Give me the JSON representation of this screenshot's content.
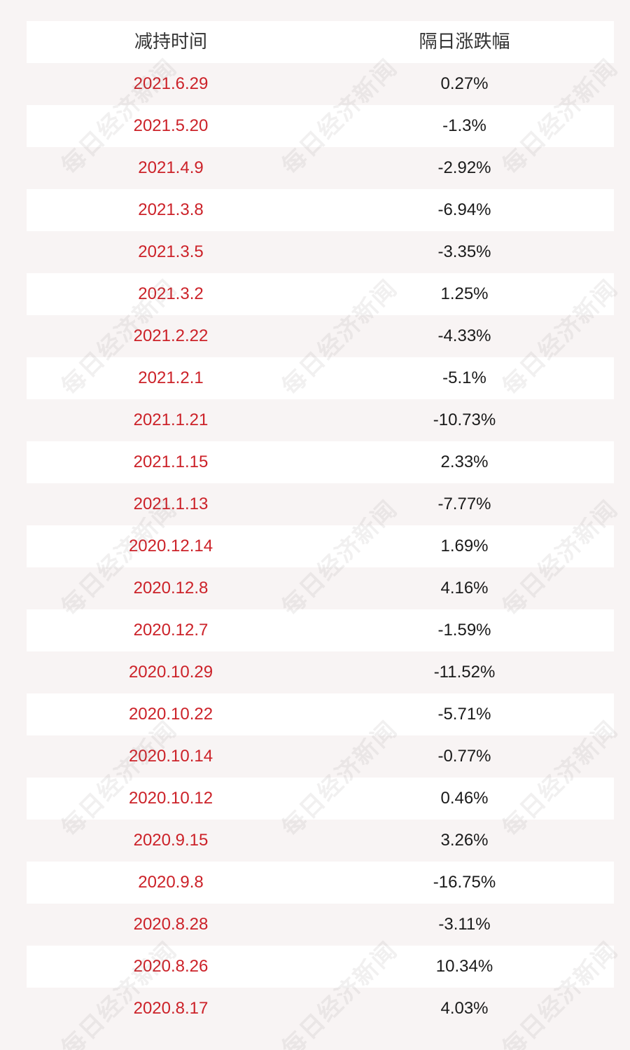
{
  "table": {
    "headers": {
      "date": "减持时间",
      "change": "隔日涨跌幅"
    },
    "rows": [
      {
        "date": "2021.6.29",
        "change": "0.27%"
      },
      {
        "date": "2021.5.20",
        "change": "-1.3%"
      },
      {
        "date": "2021.4.9",
        "change": "-2.92%"
      },
      {
        "date": "2021.3.8",
        "change": "-6.94%"
      },
      {
        "date": "2021.3.5",
        "change": "-3.35%"
      },
      {
        "date": "2021.3.2",
        "change": "1.25%"
      },
      {
        "date": "2021.2.22",
        "change": "-4.33%"
      },
      {
        "date": "2021.2.1",
        "change": "-5.1%"
      },
      {
        "date": "2021.1.21",
        "change": "-10.73%"
      },
      {
        "date": "2021.1.15",
        "change": "2.33%"
      },
      {
        "date": "2021.1.13",
        "change": "-7.77%"
      },
      {
        "date": "2020.12.14",
        "change": "1.69%"
      },
      {
        "date": "2020.12.8",
        "change": "4.16%"
      },
      {
        "date": "2020.12.7",
        "change": "-1.59%"
      },
      {
        "date": "2020.10.29",
        "change": "-11.52%"
      },
      {
        "date": "2020.10.22",
        "change": "-5.71%"
      },
      {
        "date": "2020.10.14",
        "change": "-0.77%"
      },
      {
        "date": "2020.10.12",
        "change": "0.46%"
      },
      {
        "date": "2020.9.15",
        "change": "3.26%"
      },
      {
        "date": "2020.9.8",
        "change": "-16.75%"
      },
      {
        "date": "2020.8.28",
        "change": "-3.11%"
      },
      {
        "date": "2020.8.26",
        "change": "10.34%"
      },
      {
        "date": "2020.8.17",
        "change": "4.03%"
      }
    ]
  },
  "watermark": {
    "text": "每日经济新闻"
  },
  "colors": {
    "date_text": "#cc2229",
    "value_text": "#1a1a1a",
    "row_light": "#ffffff",
    "row_tinted": "#f8f4f4"
  }
}
